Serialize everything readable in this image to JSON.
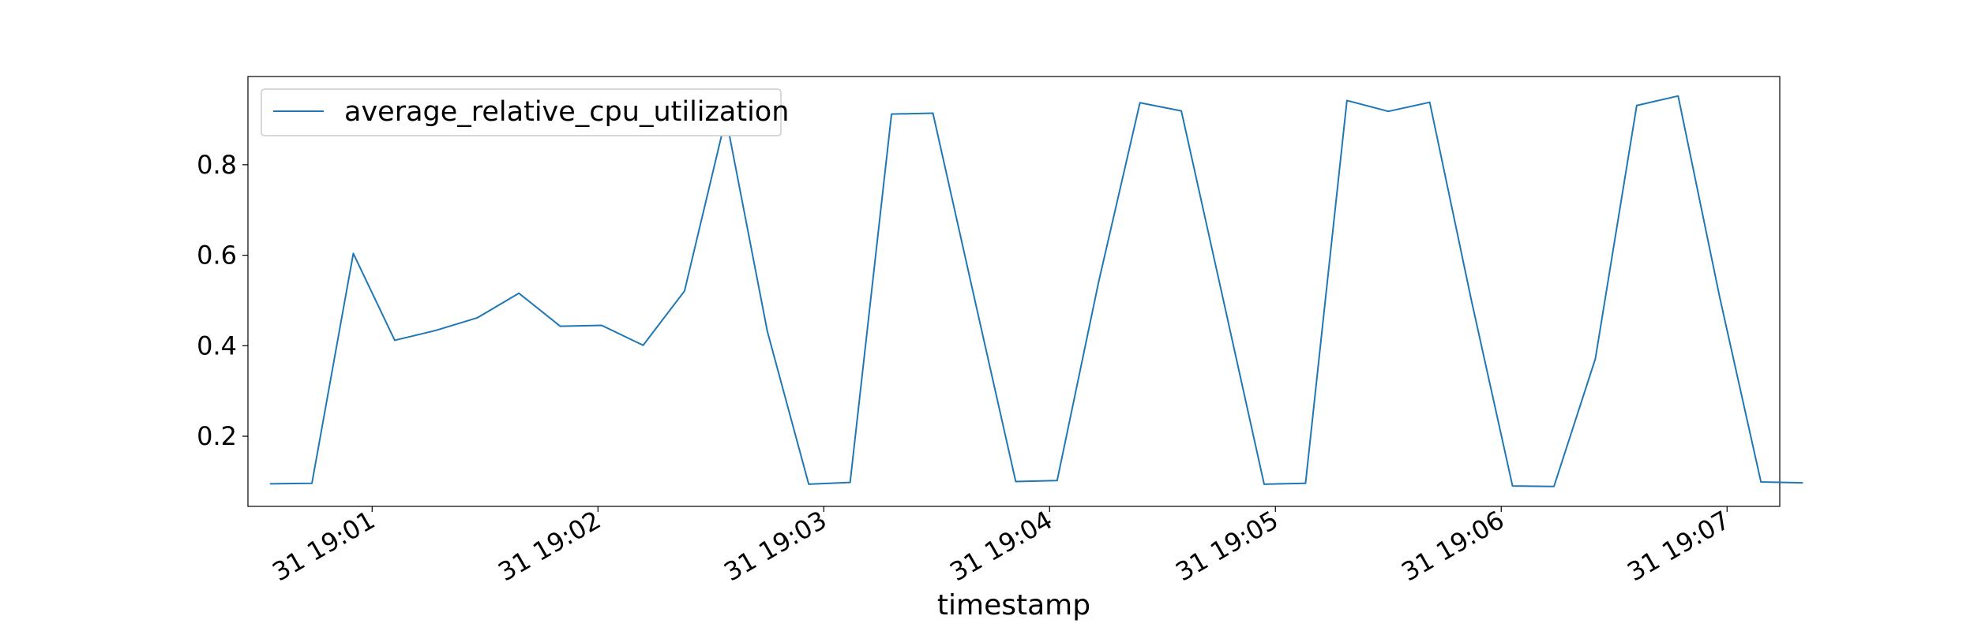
{
  "chart_data": {
    "type": "line",
    "title": "",
    "xlabel": "timestamp",
    "ylabel": "",
    "x_tick_labels": [
      "31 19:01",
      "31 19:02",
      "31 19:03",
      "31 19:04",
      "31 19:05",
      "31 19:06",
      "31 19:07"
    ],
    "y_tick_labels": [
      "0.2",
      "0.4",
      "0.6",
      "0.8"
    ],
    "ylim": [
      0.045,
      0.995
    ],
    "x": [
      "19:00:33",
      "19:00:44",
      "19:00:55",
      "19:01:06",
      "19:01:17",
      "19:01:28",
      "19:01:39",
      "19:01:50",
      "19:02:01",
      "19:02:12",
      "19:02:23",
      "19:02:34",
      "19:02:45",
      "19:02:56",
      "19:03:07",
      "19:03:18",
      "19:03:29",
      "19:03:40",
      "19:03:51",
      "19:04:02",
      "19:04:13",
      "19:04:24",
      "19:04:35",
      "19:04:46",
      "19:04:57",
      "19:05:08",
      "19:05:19",
      "19:05:30",
      "19:05:41",
      "19:05:52",
      "19:06:03",
      "19:06:14",
      "19:06:25",
      "19:06:36",
      "19:06:47",
      "19:06:58",
      "19:07:09",
      "19:07:20"
    ],
    "series": [
      {
        "name": "average_relative_cpu_utilization",
        "color": "#1f77b4",
        "values": [
          0.095,
          0.096,
          0.604,
          0.412,
          0.434,
          0.462,
          0.516,
          0.443,
          0.445,
          0.401,
          0.521,
          0.905,
          0.432,
          0.094,
          0.098,
          0.912,
          0.914,
          0.506,
          0.1,
          0.102,
          0.54,
          0.937,
          0.919,
          0.507,
          0.094,
          0.096,
          0.942,
          0.918,
          0.938,
          0.503,
          0.09,
          0.089,
          0.371,
          0.931,
          0.952,
          0.509,
          0.099,
          0.097
        ]
      }
    ],
    "grid": false,
    "legend_position": "upper-left"
  }
}
